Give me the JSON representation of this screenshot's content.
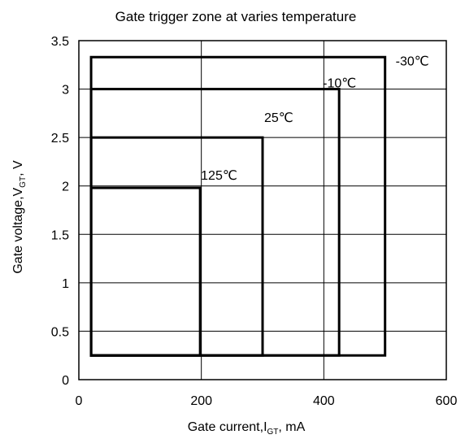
{
  "chart_data": {
    "type": "area",
    "title": "Gate trigger zone at varies temperature",
    "xlabel": {
      "prefix": "Gate current,I",
      "sub": "GT",
      "suffix": ",   mA"
    },
    "ylabel": {
      "prefix": "Gate voltage,V",
      "sub": "GT",
      "suffix": ",   V"
    },
    "xlim": [
      0,
      600
    ],
    "ylim": [
      0,
      3.5
    ],
    "x_ticks": [
      0,
      200,
      400,
      600
    ],
    "x_tick_labels": [
      "0",
      "200",
      "400",
      "600"
    ],
    "y_ticks": [
      0,
      0.5,
      1,
      1.5,
      2,
      2.5,
      3,
      3.5
    ],
    "y_tick_labels": [
      "0",
      "0.5",
      "1",
      "1.5",
      "2",
      "2.5",
      "3",
      "3.5"
    ],
    "grid": true,
    "series": [
      {
        "name": "-30℃",
        "x_min": 20,
        "x_max": 500,
        "y_min": 0.25,
        "y_max": 3.33
      },
      {
        "name": "-10℃",
        "x_min": 20,
        "x_max": 425,
        "y_min": 0.25,
        "y_max": 3.0
      },
      {
        "name": "25℃",
        "x_min": 20,
        "x_max": 300,
        "y_min": 0.25,
        "y_max": 2.5
      },
      {
        "name": "125℃",
        "x_min": 20,
        "x_max": 198,
        "y_min": 0.25,
        "y_max": 1.98
      }
    ]
  }
}
